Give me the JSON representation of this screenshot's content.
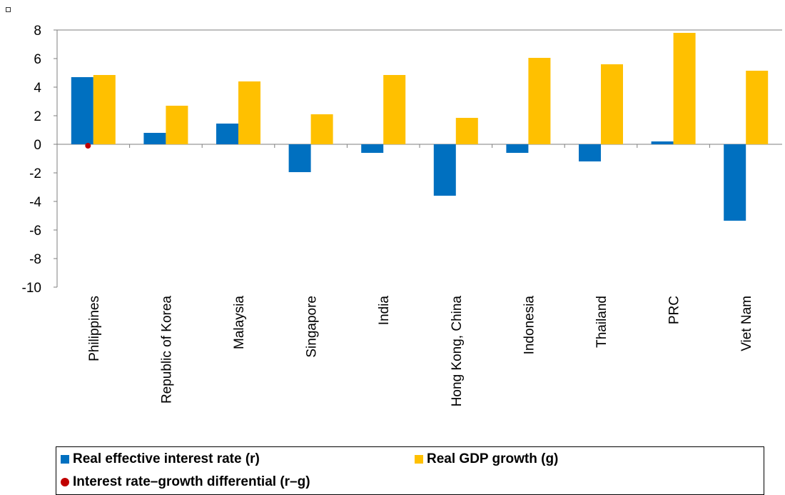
{
  "chart_data": {
    "type": "bar",
    "title": "",
    "xlabel": "",
    "ylabel": "",
    "ylim": [
      -10,
      8
    ],
    "yticks": [
      8,
      6,
      4,
      2,
      0,
      -2,
      -4,
      -6,
      -8,
      -10
    ],
    "ytick_labels": [
      "8",
      "6",
      "4",
      "2",
      "0",
      "-2",
      "-4",
      "-6",
      "-8",
      "-10"
    ],
    "categories": [
      "Philippines",
      "Republic of Korea",
      "Malaysia",
      "Singapore",
      "India",
      "Hong Kong, China",
      "Indonesia",
      "Thailand",
      "PRC",
      "Viet Nam"
    ],
    "series": [
      {
        "name": "Real effective interest rate (r)",
        "color": "#0070C0",
        "values": [
          4.7,
          0.8,
          1.45,
          -1.95,
          -0.6,
          -3.6,
          -0.6,
          -1.2,
          0.2,
          -5.35
        ]
      },
      {
        "name": "Real GDP growth (g)",
        "color": "#FFC000",
        "values": [
          4.85,
          2.7,
          4.4,
          2.1,
          4.85,
          1.85,
          6.05,
          5.6,
          7.8,
          5.15
        ]
      },
      {
        "name": "Interest rate–growth differential (r–g)",
        "color": "#C00000",
        "type": "marker",
        "values": [
          -0.1,
          null,
          null,
          null,
          null,
          null,
          null,
          null,
          null,
          null
        ]
      }
    ],
    "legend": {
      "placement": "bottom",
      "labels": [
        "Real effective interest rate (r)",
        "Real GDP growth (g)",
        "Interest rate–growth differential (r–g)"
      ]
    },
    "grid": false
  }
}
